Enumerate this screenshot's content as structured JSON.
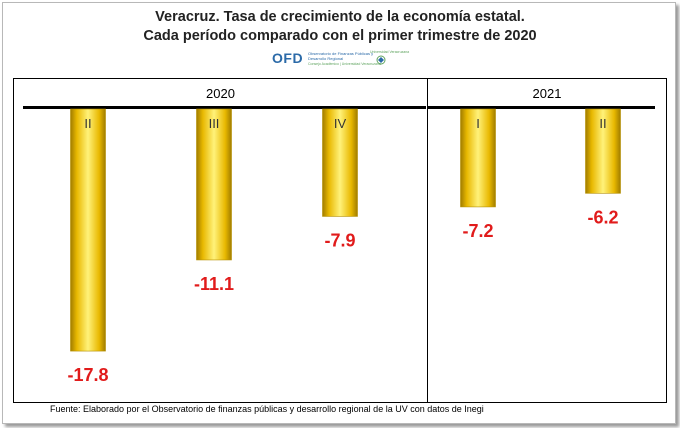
{
  "header": {
    "title_line1": "Veracruz. Tasa de crecimiento de la economía estatal.",
    "title_line2": "Cada período comparado con el  primer trimestre de 2020"
  },
  "logo": {
    "ofd_text": "OFD",
    "ofd_subtitle_line1": "Observatorio de Finanzas Públicas y",
    "ofd_subtitle_line2": "Desarrollo Regional",
    "ofd_tagline": "Consejo Académico | Universidad Veracruzana",
    "uv_text": "Universidad Veracruzana",
    "uv_icon": "uv-emblem-icon",
    "accent_color": "#2b6aa8",
    "uv_color": "#5ea35e"
  },
  "chart_data": {
    "type": "bar",
    "title": "",
    "xlabel": "",
    "ylabel": "",
    "groups": [
      {
        "year": "2020",
        "quarters": [
          "II",
          "III",
          "IV"
        ],
        "values": [
          -17.8,
          -11.1,
          -7.9
        ]
      },
      {
        "year": "2021",
        "quarters": [
          "I",
          "II"
        ],
        "values": [
          -7.2,
          -6.2
        ]
      }
    ],
    "bar_color": "#f2c200",
    "label_color": "#e11b1b",
    "grid": false,
    "legend": "none"
  },
  "footer": {
    "source": "Fuente: Elaborado por el Observatorio de  finanzas públicas y desarrollo regional de la UV con datos de Inegi"
  }
}
